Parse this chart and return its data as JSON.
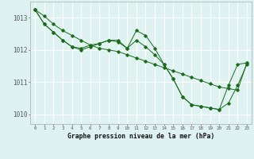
{
  "background_color": "#dff2f2",
  "grid_color": "#ffffff",
  "line_color": "#1a6b1a",
  "xlabel": "Graphe pression niveau de la mer (hPa)",
  "ylim": [
    1009.7,
    1013.5
  ],
  "xlim": [
    -0.5,
    23.5
  ],
  "yticks": [
    1010,
    1011,
    1012,
    1013
  ],
  "xticks": [
    0,
    1,
    2,
    3,
    4,
    5,
    6,
    7,
    8,
    9,
    10,
    11,
    12,
    13,
    14,
    15,
    16,
    17,
    18,
    19,
    20,
    21,
    22,
    23
  ],
  "series1": {
    "x": [
      0,
      1,
      2,
      3,
      4,
      5,
      6,
      7,
      8,
      9,
      10,
      11,
      12,
      13,
      14,
      15,
      16,
      17,
      18,
      19,
      20,
      21,
      22,
      23
    ],
    "y": [
      1013.25,
      1013.05,
      1012.8,
      1012.6,
      1012.45,
      1012.3,
      1012.15,
      1012.05,
      1012.0,
      1011.95,
      1011.85,
      1011.75,
      1011.65,
      1011.55,
      1011.45,
      1011.35,
      1011.25,
      1011.15,
      1011.05,
      1010.95,
      1010.85,
      1010.8,
      1010.75,
      1011.6
    ]
  },
  "series2": {
    "x": [
      0,
      1,
      2,
      3,
      4,
      5,
      6,
      7,
      8,
      9,
      10,
      11,
      12,
      13,
      14,
      15,
      16,
      17,
      18,
      19,
      20,
      21,
      22,
      23
    ],
    "y": [
      1013.25,
      1012.8,
      1012.55,
      1012.3,
      1012.1,
      1012.0,
      1012.1,
      1012.2,
      1012.3,
      1012.3,
      1012.05,
      1012.6,
      1012.45,
      1012.05,
      1011.55,
      1011.1,
      1010.55,
      1010.3,
      1010.25,
      1010.2,
      1010.15,
      1010.9,
      1011.55,
      1011.6
    ]
  },
  "series3": {
    "x": [
      0,
      1,
      2,
      3,
      4,
      5,
      6,
      7,
      8,
      9,
      10,
      11,
      12,
      13,
      14,
      15,
      16,
      17,
      18,
      19,
      20,
      21,
      22,
      23
    ],
    "y": [
      1013.25,
      1012.8,
      1012.55,
      1012.3,
      1012.1,
      1012.05,
      1012.15,
      1012.2,
      1012.3,
      1012.25,
      1012.05,
      1012.3,
      1012.1,
      1011.85,
      1011.55,
      1011.1,
      1010.55,
      1010.3,
      1010.25,
      1010.2,
      1010.15,
      1010.35,
      1010.9,
      1011.55
    ]
  }
}
